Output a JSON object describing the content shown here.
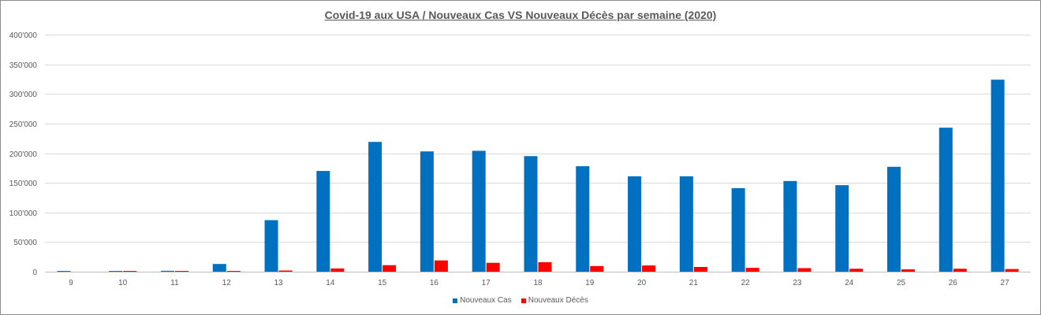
{
  "chart_data": {
    "type": "bar",
    "title": "Covid-19 aux USA / Nouveaux Cas VS Nouveaux Décès par semaine (2020)",
    "xlabel": "",
    "ylabel": "",
    "ylim": [
      0,
      400000
    ],
    "yticks": [
      {
        "value": 0,
        "label": "0"
      },
      {
        "value": 50000,
        "label": "50'000"
      },
      {
        "value": 100000,
        "label": "100'000"
      },
      {
        "value": 150000,
        "label": "150'000"
      },
      {
        "value": 200000,
        "label": "200'000"
      },
      {
        "value": 250000,
        "label": "250'000"
      },
      {
        "value": 300000,
        "label": "300'000"
      },
      {
        "value": 350000,
        "label": "350'000"
      },
      {
        "value": 400000,
        "label": "400'000"
      }
    ],
    "categories": [
      "9",
      "10",
      "11",
      "12",
      "13",
      "14",
      "15",
      "16",
      "17",
      "18",
      "19",
      "20",
      "21",
      "22",
      "23",
      "24",
      "25",
      "26",
      "27"
    ],
    "series": [
      {
        "name": "Nouveaux Cas",
        "color": "#0070c0",
        "values": [
          400,
          1200,
          1500,
          13000,
          87000,
          170000,
          219000,
          203000,
          204000,
          195000,
          178000,
          161000,
          161000,
          141000,
          153000,
          146000,
          177000,
          243000,
          324000
        ]
      },
      {
        "name": "Nouveaux Décès",
        "color": "#ff0000",
        "values": [
          0,
          300,
          600,
          1000,
          2000,
          5500,
          11000,
          19000,
          15000,
          16000,
          9500,
          10500,
          8000,
          6500,
          6000,
          5000,
          4000,
          5000,
          4500
        ]
      }
    ],
    "grid": true,
    "legend_position": "bottom"
  }
}
